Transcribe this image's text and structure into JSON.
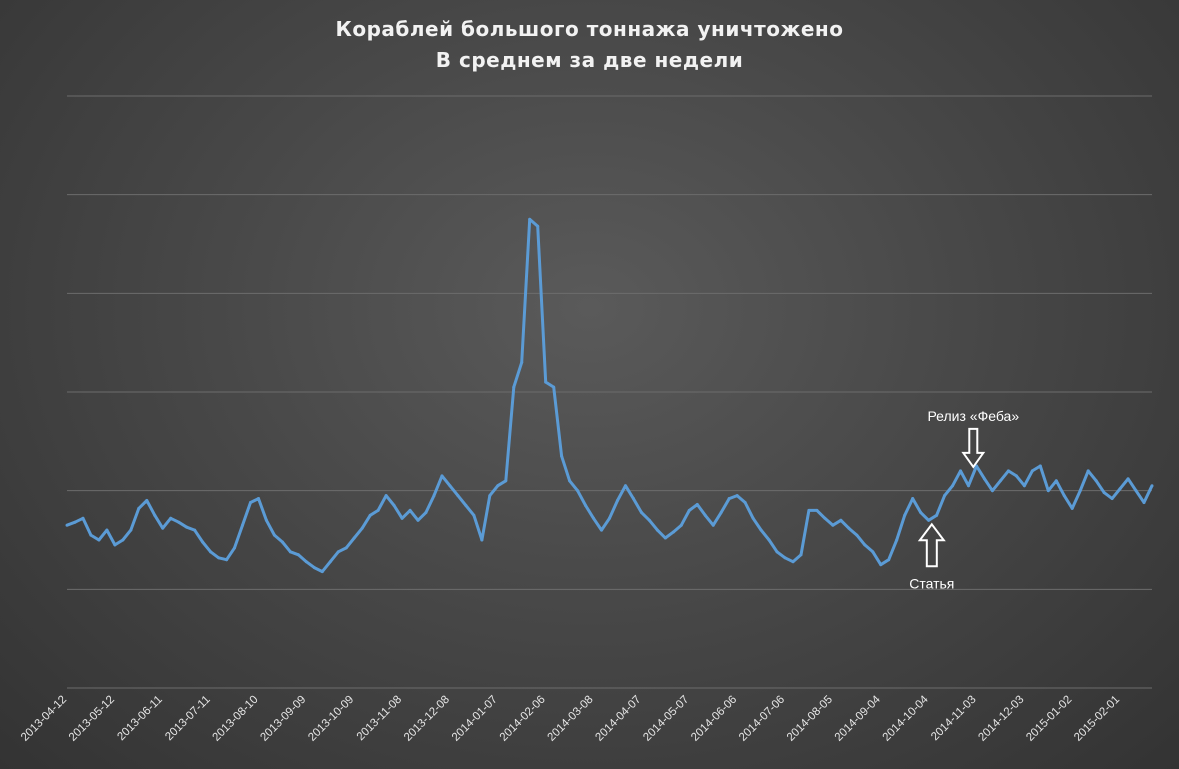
{
  "chart_data": {
    "type": "line",
    "title": "Кораблей большого тоннажа уничтожено",
    "subtitle": "В среднем за две недели",
    "xlabel": "",
    "ylabel": "",
    "x_tick_labels": [
      "2013-04-12",
      "2013-05-12",
      "2013-06-11",
      "2013-07-11",
      "2013-08-10",
      "2013-09-09",
      "2013-10-09",
      "2013-11-08",
      "2013-12-08",
      "2014-01-07",
      "2014-02-06",
      "2014-03-08",
      "2014-04-07",
      "2014-05-07",
      "2014-06-06",
      "2014-07-06",
      "2014-08-05",
      "2014-09-04",
      "2014-10-04",
      "2014-11-03",
      "2014-12-03",
      "2015-01-02",
      "2015-02-01"
    ],
    "grid": true,
    "legend": "none",
    "y_axis_labels_shown": false,
    "series_color": "#5b9bd5",
    "y_units_note": "relative; y axis has no printed labels, values in gridline units (0 = bottom gridline, 6 = top gridline)",
    "ylim": [
      0,
      6
    ],
    "points": [
      [
        "2013-04-12",
        1.65
      ],
      [
        "2013-04-17",
        1.68
      ],
      [
        "2013-04-22",
        1.72
      ],
      [
        "2013-04-27",
        1.55
      ],
      [
        "2013-05-02",
        1.5
      ],
      [
        "2013-05-07",
        1.6
      ],
      [
        "2013-05-12",
        1.45
      ],
      [
        "2013-05-17",
        1.5
      ],
      [
        "2013-05-22",
        1.6
      ],
      [
        "2013-05-27",
        1.82
      ],
      [
        "2013-06-01",
        1.9
      ],
      [
        "2013-06-06",
        1.75
      ],
      [
        "2013-06-11",
        1.62
      ],
      [
        "2013-06-16",
        1.72
      ],
      [
        "2013-06-21",
        1.68
      ],
      [
        "2013-06-26",
        1.63
      ],
      [
        "2013-07-01",
        1.6
      ],
      [
        "2013-07-06",
        1.48
      ],
      [
        "2013-07-11",
        1.38
      ],
      [
        "2013-07-16",
        1.32
      ],
      [
        "2013-07-21",
        1.3
      ],
      [
        "2013-07-26",
        1.42
      ],
      [
        "2013-07-31",
        1.65
      ],
      [
        "2013-08-05",
        1.88
      ],
      [
        "2013-08-10",
        1.92
      ],
      [
        "2013-08-15",
        1.7
      ],
      [
        "2013-08-20",
        1.55
      ],
      [
        "2013-08-25",
        1.48
      ],
      [
        "2013-08-30",
        1.38
      ],
      [
        "2013-09-04",
        1.35
      ],
      [
        "2013-09-09",
        1.28
      ],
      [
        "2013-09-14",
        1.22
      ],
      [
        "2013-09-19",
        1.18
      ],
      [
        "2013-09-24",
        1.28
      ],
      [
        "2013-09-29",
        1.38
      ],
      [
        "2013-10-04",
        1.42
      ],
      [
        "2013-10-09",
        1.52
      ],
      [
        "2013-10-14",
        1.62
      ],
      [
        "2013-10-19",
        1.75
      ],
      [
        "2013-10-24",
        1.8
      ],
      [
        "2013-10-29",
        1.95
      ],
      [
        "2013-11-03",
        1.85
      ],
      [
        "2013-11-08",
        1.72
      ],
      [
        "2013-11-13",
        1.8
      ],
      [
        "2013-11-18",
        1.7
      ],
      [
        "2013-11-23",
        1.78
      ],
      [
        "2013-11-28",
        1.95
      ],
      [
        "2013-12-03",
        2.15
      ],
      [
        "2013-12-08",
        2.05
      ],
      [
        "2013-12-13",
        1.95
      ],
      [
        "2013-12-18",
        1.85
      ],
      [
        "2013-12-23",
        1.75
      ],
      [
        "2013-12-28",
        1.5
      ],
      [
        "2014-01-02",
        1.95
      ],
      [
        "2014-01-07",
        2.05
      ],
      [
        "2014-01-12",
        2.1
      ],
      [
        "2014-01-17",
        3.05
      ],
      [
        "2014-01-22",
        3.3
      ],
      [
        "2014-01-27",
        4.75
      ],
      [
        "2014-02-01",
        4.68
      ],
      [
        "2014-02-06",
        3.1
      ],
      [
        "2014-02-11",
        3.05
      ],
      [
        "2014-02-16",
        2.35
      ],
      [
        "2014-02-21",
        2.1
      ],
      [
        "2014-02-26",
        2.0
      ],
      [
        "2014-03-03",
        1.85
      ],
      [
        "2014-03-08",
        1.72
      ],
      [
        "2014-03-13",
        1.6
      ],
      [
        "2014-03-18",
        1.72
      ],
      [
        "2014-03-23",
        1.9
      ],
      [
        "2014-03-28",
        2.05
      ],
      [
        "2014-04-02",
        1.92
      ],
      [
        "2014-04-07",
        1.78
      ],
      [
        "2014-04-12",
        1.7
      ],
      [
        "2014-04-17",
        1.6
      ],
      [
        "2014-04-22",
        1.52
      ],
      [
        "2014-04-27",
        1.58
      ],
      [
        "2014-05-02",
        1.65
      ],
      [
        "2014-05-07",
        1.8
      ],
      [
        "2014-05-12",
        1.86
      ],
      [
        "2014-05-17",
        1.75
      ],
      [
        "2014-05-22",
        1.65
      ],
      [
        "2014-05-27",
        1.78
      ],
      [
        "2014-06-01",
        1.92
      ],
      [
        "2014-06-06",
        1.95
      ],
      [
        "2014-06-11",
        1.88
      ],
      [
        "2014-06-16",
        1.72
      ],
      [
        "2014-06-21",
        1.6
      ],
      [
        "2014-06-26",
        1.5
      ],
      [
        "2014-07-01",
        1.38
      ],
      [
        "2014-07-06",
        1.32
      ],
      [
        "2014-07-11",
        1.28
      ],
      [
        "2014-07-16",
        1.35
      ],
      [
        "2014-07-21",
        1.8
      ],
      [
        "2014-07-26",
        1.8
      ],
      [
        "2014-07-31",
        1.72
      ],
      [
        "2014-08-05",
        1.65
      ],
      [
        "2014-08-10",
        1.7
      ],
      [
        "2014-08-15",
        1.62
      ],
      [
        "2014-08-20",
        1.55
      ],
      [
        "2014-08-25",
        1.45
      ],
      [
        "2014-08-30",
        1.38
      ],
      [
        "2014-09-04",
        1.25
      ],
      [
        "2014-09-09",
        1.3
      ],
      [
        "2014-09-14",
        1.5
      ],
      [
        "2014-09-19",
        1.75
      ],
      [
        "2014-09-24",
        1.92
      ],
      [
        "2014-09-29",
        1.78
      ],
      [
        "2014-10-04",
        1.7
      ],
      [
        "2014-10-09",
        1.75
      ],
      [
        "2014-10-14",
        1.95
      ],
      [
        "2014-10-19",
        2.05
      ],
      [
        "2014-10-24",
        2.2
      ],
      [
        "2014-10-29",
        2.05
      ],
      [
        "2014-11-03",
        2.25
      ],
      [
        "2014-11-08",
        2.12
      ],
      [
        "2014-11-13",
        2.0
      ],
      [
        "2014-11-18",
        2.1
      ],
      [
        "2014-11-23",
        2.2
      ],
      [
        "2014-11-28",
        2.15
      ],
      [
        "2014-12-03",
        2.05
      ],
      [
        "2014-12-08",
        2.2
      ],
      [
        "2014-12-13",
        2.25
      ],
      [
        "2014-12-18",
        2.0
      ],
      [
        "2014-12-23",
        2.1
      ],
      [
        "2014-12-28",
        1.95
      ],
      [
        "2015-01-02",
        1.82
      ],
      [
        "2015-01-07",
        2.0
      ],
      [
        "2015-01-12",
        2.2
      ],
      [
        "2015-01-17",
        2.1
      ],
      [
        "2015-01-22",
        1.98
      ],
      [
        "2015-01-27",
        1.92
      ],
      [
        "2015-02-01",
        2.02
      ],
      [
        "2015-02-06",
        2.12
      ],
      [
        "2015-02-11",
        2.0
      ],
      [
        "2015-02-16",
        1.88
      ],
      [
        "2015-02-21",
        2.05
      ]
    ],
    "annotations": [
      {
        "text": "Релиз «Феба»",
        "x": "2014-11-01",
        "y": 2.2,
        "arrow": "down"
      },
      {
        "text": "Статья",
        "x": "2014-10-06",
        "y": 1.72,
        "arrow": "up"
      }
    ]
  }
}
